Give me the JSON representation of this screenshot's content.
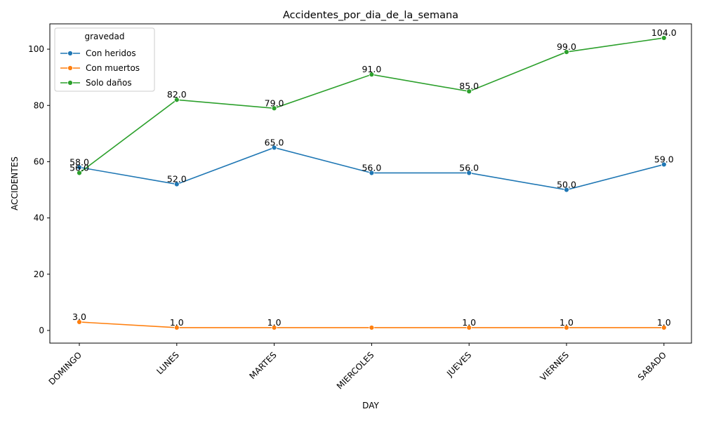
{
  "chart_data": {
    "type": "line",
    "title": "Accidentes_por_dia_de_la_semana",
    "xlabel": "DAY",
    "ylabel": "ACCIDENTES",
    "categories": [
      "DOMINGO",
      "LUNES",
      "MARTES",
      "MIERCOLES",
      "JUEVES",
      "VIERNES",
      "SABADO"
    ],
    "ylim": [
      -4.5,
      109
    ],
    "yticks": [
      0,
      20,
      40,
      60,
      80,
      100
    ],
    "grid": false,
    "legend": {
      "title": "gravedad",
      "position": "top-left"
    },
    "series": [
      {
        "name": "Con heridos",
        "color": "#1f77b4",
        "values": [
          58,
          52,
          65,
          56,
          56,
          50,
          59
        ],
        "labels": [
          "58.0",
          "52.0",
          "65.0",
          "56.0",
          "56.0",
          "50.0",
          "59.0"
        ]
      },
      {
        "name": "Con muertos",
        "color": "#ff7f0e",
        "values": [
          3,
          1,
          1,
          1,
          1,
          1,
          1
        ],
        "labels": [
          "3.0",
          "1.0",
          "1.0",
          "",
          "1.0",
          "1.0",
          "1.0"
        ]
      },
      {
        "name": "Solo daños",
        "color": "#2ca02c",
        "values": [
          56,
          82,
          79,
          91,
          85,
          99,
          104
        ],
        "labels": [
          "56.0",
          "82.0",
          "79.0",
          "91.0",
          "85.0",
          "99.0",
          "104.0"
        ]
      }
    ]
  }
}
